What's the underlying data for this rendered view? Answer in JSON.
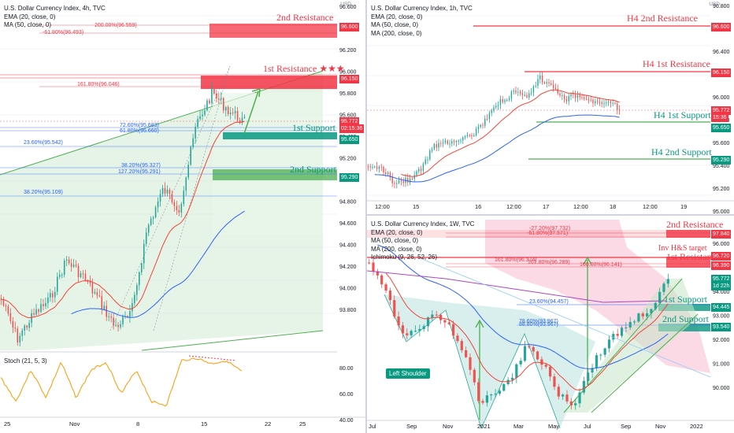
{
  "colors": {
    "up": "#26a69a",
    "down": "#ef5350",
    "ema": "#f44336",
    "ma50": "#2962ff",
    "ma200": "#ab47bc",
    "resistance": "#f23645",
    "support": "#089981",
    "channel": "#4caf50",
    "stoch": "#ff9800",
    "fib": "#2962ff",
    "ichimoku_cloud": "#f8bbd0"
  },
  "panels": [
    {
      "id": "p1",
      "title": "U.S. Dollar Currency Index, 4h, TVC",
      "indicators": [
        "EMA (20, close, 0)",
        "MA (50, close, 0)"
      ],
      "currency": "USD",
      "price_ticks": [
        "96.600",
        "96.400",
        "96.200",
        "96.000",
        "95.800",
        "95.600",
        "95.400",
        "95.200",
        "95.000",
        "94.800",
        "94.600",
        "94.400",
        "94.200",
        "94.000",
        "93.800"
      ],
      "stoch_label": "Stoch (21, 5, 3)",
      "stoch_ticks": [
        "80.00",
        "60.00",
        "40.00"
      ],
      "x_labels": [
        "25",
        "Nov",
        "8",
        "15",
        "22",
        "25"
      ],
      "tags": {
        "res2": "96.600",
        "res1": "96.150",
        "last_price": "95.772",
        "countdown": "02:15:36",
        "sup1": "95.650",
        "sup2": "95.290"
      },
      "zones": {
        "res2": "2nd Resistance",
        "res1": "1st Resistance ★★★",
        "sup1": "1st Support",
        "sup2": "2nd Support"
      },
      "fibs": [
        "200.00%(96.559)",
        "-61.80%(96.493)",
        "161.80%(96.046)",
        "72.60%(95.683)",
        "61.80%(95.660)",
        "23.60%(95.542)",
        "38.20%(95.327)",
        "127.20%(95.291)",
        "38.20%(95.109)"
      ]
    },
    {
      "id": "p2",
      "title": "U.S. Dollar Currency Index, 1h, TVC",
      "indicators": [
        "EMA (20, close, 0)",
        "MA (50, close, 0)",
        "MA (200, close, 0)"
      ],
      "currency": "USD",
      "price_ticks": [
        "96.800",
        "96.600",
        "96.400",
        "96.200",
        "96.000",
        "95.800",
        "95.600",
        "95.400",
        "95.200",
        "95.000"
      ],
      "x_labels": [
        "12:00",
        "15",
        "16",
        "12:00",
        "17",
        "12:00",
        "18",
        "12:00",
        "19"
      ],
      "tags": {
        "res2": "96.600",
        "res1": "96.150",
        "last_price": "95.772",
        "countdown": "15:36",
        "sup1": "95.650",
        "sup2": "95.290"
      },
      "zones": {
        "res2": "H4 2nd Resistance",
        "res1": "H4 1st Resistance",
        "sup1": "H4 1st Support",
        "sup2": "H4 2nd Support"
      }
    },
    {
      "id": "p3",
      "title": "U.S. Dollar Currency Index, 1W, TVC",
      "indicators": [
        "EMA (20, close, 0)",
        "MA (50, close, 0)",
        "MA (200, close, 0)",
        "Ichimoku (9, 26, 52, 26)"
      ],
      "price_ticks": [
        "96.000",
        "95.000",
        "94.000",
        "93.000",
        "92.000",
        "91.000",
        "90.000"
      ],
      "x_labels": [
        "Jul",
        "Sep",
        "Nov",
        "2021",
        "Mar",
        "May",
        "Jul",
        "Sep",
        "Nov",
        "2022"
      ],
      "tags": {
        "res2": "97.840",
        "res1": "96.720",
        "res1b": "96.390",
        "last_price": "95.772",
        "countdown": "1d 22h",
        "sup1": "94.445",
        "sup2": "93.540"
      },
      "zones": {
        "res2": "2nd Resistance",
        "res1": "1st Resistance",
        "target": "Inv H&S target",
        "sup1": "1st Support",
        "sup2": "2nd Support"
      },
      "fibs": [
        "-27.20%(97.732)",
        "-61.80%(97.571)",
        "161.80%(96.374)",
        "161.80%(96.289)",
        "100.00%(96.141)",
        "23.60%(94.457)",
        "78.60%(93.967)",
        "88.80%(93.967)"
      ],
      "shoulder_label": "Left Shoulder"
    }
  ]
}
